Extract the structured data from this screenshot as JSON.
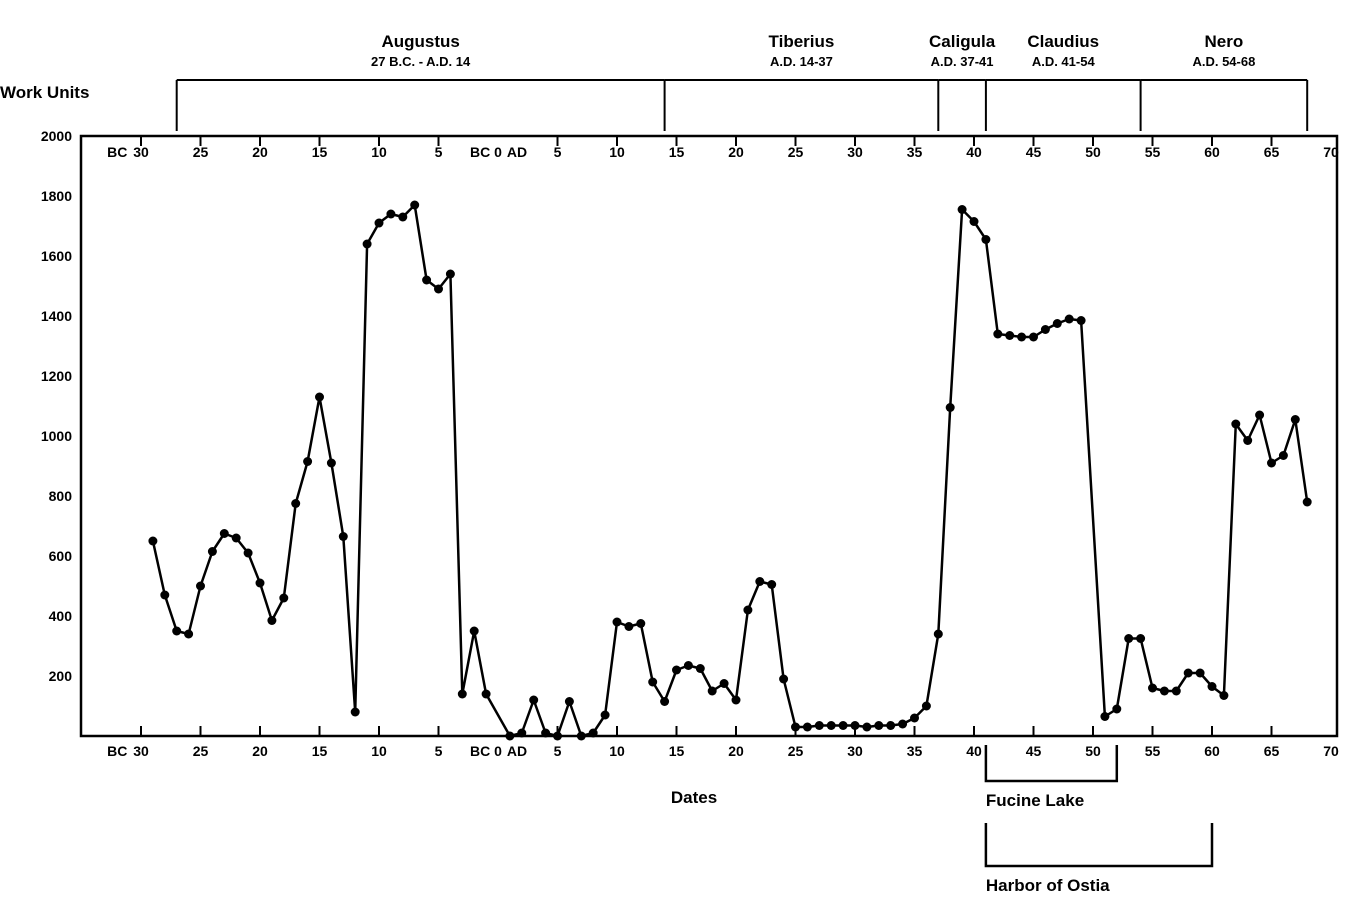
{
  "chart_data": {
    "type": "line",
    "ylabel": "Work Units",
    "xlabel": "Dates",
    "ylim": [
      0,
      2000
    ],
    "xlim": [
      -32,
      70
    ],
    "y_ticks": [
      {
        "value": 2000,
        "label": "2000"
      },
      {
        "value": 1800,
        "label": "1800"
      },
      {
        "value": 1600,
        "label": "1600"
      },
      {
        "value": 1400,
        "label": "1400"
      },
      {
        "value": 1200,
        "label": "1200"
      },
      {
        "value": 1000,
        "label": "1000"
      },
      {
        "value": 800,
        "label": "800"
      },
      {
        "value": 600,
        "label": "600"
      },
      {
        "value": 400,
        "label": "400"
      },
      {
        "value": 200,
        "label": "200"
      }
    ],
    "x_ticks": [
      {
        "value": -32,
        "label": "BC"
      },
      {
        "value": -30,
        "label": "30"
      },
      {
        "value": -25,
        "label": "25"
      },
      {
        "value": -20,
        "label": "20"
      },
      {
        "value": -15,
        "label": "15"
      },
      {
        "value": -10,
        "label": "10"
      },
      {
        "value": -5,
        "label": "5"
      },
      {
        "value": -1.5,
        "label": "BC"
      },
      {
        "value": 0,
        "label": "0"
      },
      {
        "value": 1.6,
        "label": "AD"
      },
      {
        "value": 5,
        "label": "5"
      },
      {
        "value": 10,
        "label": "10"
      },
      {
        "value": 15,
        "label": "15"
      },
      {
        "value": 20,
        "label": "20"
      },
      {
        "value": 25,
        "label": "25"
      },
      {
        "value": 30,
        "label": "30"
      },
      {
        "value": 35,
        "label": "35"
      },
      {
        "value": 40,
        "label": "40"
      },
      {
        "value": 45,
        "label": "45"
      },
      {
        "value": 50,
        "label": "50"
      },
      {
        "value": 55,
        "label": "55"
      },
      {
        "value": 60,
        "label": "60"
      },
      {
        "value": 65,
        "label": "65"
      },
      {
        "value": 70,
        "label": "70"
      }
    ],
    "reigns": [
      {
        "name": "Augustus",
        "dates": "27 B.C. - A.D. 14",
        "start": -27,
        "end": 14
      },
      {
        "name": "Tiberius",
        "dates": "A.D. 14-37",
        "start": 14,
        "end": 37
      },
      {
        "name": "Caligula",
        "dates": "A.D. 37-41",
        "start": 37,
        "end": 41
      },
      {
        "name": "Claudius",
        "dates": "A.D. 41-54",
        "start": 41,
        "end": 54
      },
      {
        "name": "Nero",
        "dates": "A.D. 54-68",
        "start": 54,
        "end": 68
      }
    ],
    "projects": [
      {
        "name": "Fucine Lake",
        "start": 41,
        "end": 52
      },
      {
        "name": "Harbor of Ostia",
        "start": 41,
        "end": 60
      }
    ],
    "series": [
      {
        "points": [
          [
            -29,
            650
          ],
          [
            -28,
            470
          ],
          [
            -27,
            350
          ],
          [
            -26,
            340
          ],
          [
            -25,
            500
          ],
          [
            -24,
            615
          ],
          [
            -23,
            675
          ],
          [
            -22,
            660
          ],
          [
            -21,
            610
          ],
          [
            -20,
            510
          ],
          [
            -19,
            385
          ],
          [
            -18,
            460
          ],
          [
            -17,
            775
          ],
          [
            -16,
            915
          ],
          [
            -15,
            1130
          ],
          [
            -14,
            910
          ],
          [
            -13,
            665
          ],
          [
            -12,
            80
          ],
          [
            -11,
            1640
          ],
          [
            -10,
            1710
          ],
          [
            -9,
            1740
          ],
          [
            -8,
            1730
          ],
          [
            -7,
            1770
          ],
          [
            -6,
            1520
          ],
          [
            -5,
            1490
          ],
          [
            -4,
            1540
          ],
          [
            -3,
            140
          ],
          [
            -2,
            350
          ],
          [
            -1,
            140
          ],
          [
            1,
            0
          ],
          [
            2,
            10
          ],
          [
            3,
            120
          ],
          [
            4,
            10
          ],
          [
            5,
            0
          ],
          [
            6,
            115
          ],
          [
            7,
            0
          ],
          [
            8,
            10
          ],
          [
            9,
            70
          ],
          [
            10,
            380
          ],
          [
            11,
            365
          ],
          [
            12,
            375
          ],
          [
            13,
            180
          ],
          [
            14,
            115
          ],
          [
            15,
            220
          ],
          [
            16,
            235
          ],
          [
            17,
            225
          ],
          [
            18,
            150
          ],
          [
            19,
            175
          ],
          [
            20,
            120
          ],
          [
            21,
            420
          ],
          [
            22,
            515
          ],
          [
            23,
            505
          ],
          [
            24,
            190
          ],
          [
            25,
            30
          ],
          [
            26,
            30
          ],
          [
            27,
            35
          ],
          [
            28,
            35
          ],
          [
            29,
            35
          ],
          [
            30,
            35
          ],
          [
            31,
            30
          ],
          [
            32,
            35
          ],
          [
            33,
            35
          ],
          [
            34,
            40
          ],
          [
            35,
            60
          ],
          [
            36,
            100
          ],
          [
            37,
            340
          ],
          [
            38,
            1095
          ],
          [
            39,
            1755
          ],
          [
            40,
            1715
          ],
          [
            41,
            1655
          ],
          [
            42,
            1340
          ],
          [
            43,
            1335
          ],
          [
            44,
            1330
          ],
          [
            45,
            1330
          ],
          [
            46,
            1355
          ],
          [
            47,
            1375
          ],
          [
            48,
            1390
          ],
          [
            49,
            1385
          ],
          [
            51,
            65
          ],
          [
            52,
            90
          ],
          [
            53,
            325
          ],
          [
            54,
            325
          ],
          [
            55,
            160
          ],
          [
            56,
            150
          ],
          [
            57,
            150
          ],
          [
            58,
            210
          ],
          [
            59,
            210
          ],
          [
            60,
            165
          ],
          [
            61,
            135
          ],
          [
            62,
            1040
          ],
          [
            63,
            985
          ],
          [
            64,
            1070
          ],
          [
            65,
            910
          ],
          [
            66,
            935
          ],
          [
            67,
            1055
          ],
          [
            68,
            780
          ]
        ]
      }
    ]
  }
}
